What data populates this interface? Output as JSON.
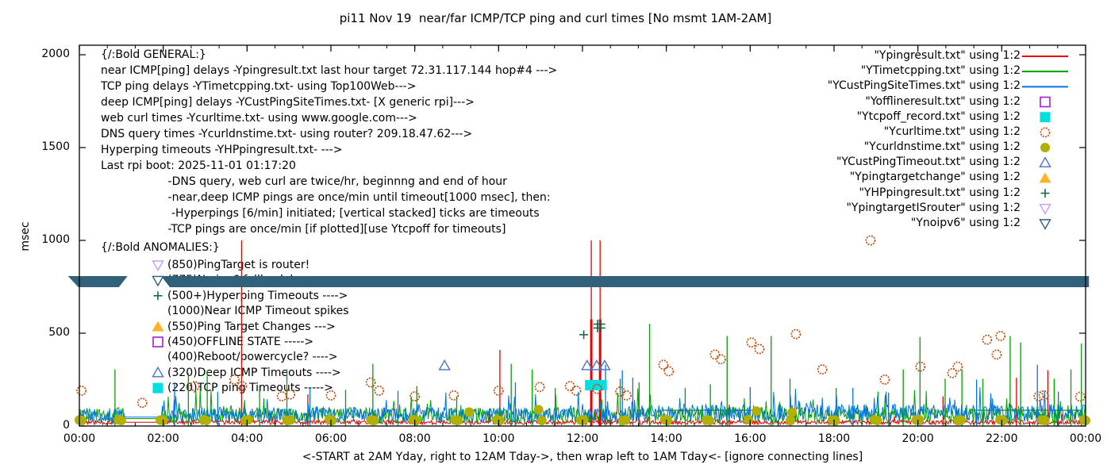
{
  "title": "pi11 Nov 19  near/far ICMP/TCP ping and curl times [No msmt 1AM-2AM]",
  "ylabel": "msec",
  "xlabel": "<-START at 2AM Yday, right to 12AM Tday->, then wrap left to 1AM Tday<- [ignore connecting lines]",
  "axes": {
    "y_tick_labels": [
      "0",
      "500",
      "1000",
      "1500",
      "2000"
    ],
    "x_tick_labels": [
      "00:00",
      "02:00",
      "04:00",
      "06:00",
      "08:00",
      "10:00",
      "12:00",
      "14:00",
      "16:00",
      "18:00",
      "20:00",
      "22:00",
      "00:00"
    ]
  },
  "general_block": {
    "lines": [
      "{/:Bold GENERAL:}",
      "near ICMP[ping] delays -Ypingresult.txt last hour target 72.31.117.144 hop#4 --->",
      "TCP ping delays -YTimetcpping.txt- using Top100Web--->",
      "deep ICMP[ping] delays -YCustPingSiteTimes.txt- [X generic rpi]--->",
      "web curl times -Ycurltime.txt- using www.google.com--->",
      "DNS query times -Ycurldnstime.txt- using router? 209.18.47.62--->",
      "Hyperping timeouts -YHPpingresult.txt- --->",
      "Last rpi boot: 2025-11-01 01:17:20",
      "                   -DNS query, web curl are twice/hr, beginnng and end of hour",
      "                   -near,deep ICMP pings are once/min until timeout[1000 msec], then:",
      "                    -Hyperpings [6/min] initiated; [vertical stacked] ticks are timeouts",
      "                   -TCP pings are once/min [if plotted][use Ytcpoff for timeouts]"
    ]
  },
  "anomalies_block": {
    "header": "{/:Bold ANOMALIES:}",
    "items": [
      {
        "marker": "tri-down-open",
        "color": "#c79cf2",
        "text": "(850)PingTarget is router!"
      },
      {
        "marker": "tri-down-open",
        "color": "#30607a",
        "text": "(775)No ipv6 fallback happens ---->"
      },
      {
        "marker": "plus",
        "color": "#156b52",
        "text": "(500+)Hyperping Timeouts ---->"
      },
      {
        "marker": "none",
        "color": "#000000",
        "text": "(1000)Near ICMP Timeout spikes"
      },
      {
        "marker": "tri-up-fill",
        "color": "#ffb428",
        "text": "(550)Ping Target Changes --->"
      },
      {
        "marker": "square-open",
        "color": "#a020d0",
        "text": "(450)OFFLINE STATE ----->"
      },
      {
        "marker": "none",
        "color": "#000000",
        "text": "(400)Reboot/powercycle? ---->"
      },
      {
        "marker": "tri-up-open",
        "color": "#4a72c8",
        "text": "(320)Deep ICMP Timeouts ---->"
      },
      {
        "marker": "square-fill",
        "color": "#00dede",
        "text": "(220)TCP ping Timeouts ----->"
      }
    ]
  },
  "legend": {
    "items": [
      {
        "label": "\"Ypingresult.txt\" using 1:2",
        "marker": "line",
        "color": "#e60000"
      },
      {
        "label": "\"YTimetcpping.txt\" using 1:2",
        "marker": "line",
        "color": "#00a000"
      },
      {
        "label": "\"YCustPingSiteTimes.txt\" using 1:2",
        "marker": "line",
        "color": "#0073e6"
      },
      {
        "label": "\"Yofflineresult.txt\" using 1:2",
        "marker": "square-open",
        "color": "#a020d0"
      },
      {
        "label": "\"Ytcpoff_record.txt\" using 1:2",
        "marker": "square-fill",
        "color": "#00dede"
      },
      {
        "label": "\"Ycurltime.txt\" using 1:2",
        "marker": "circle-open",
        "color": "#c05010"
      },
      {
        "label": "\"Ycurldnstime.txt\" using 1:2",
        "marker": "circle-fill",
        "color": "#b0b000"
      },
      {
        "label": "\"YCustPingTimeout.txt\" using 1:2",
        "marker": "tri-up-open",
        "color": "#4a72c8"
      },
      {
        "label": "\"Ypingtargetchange\" using 1:2",
        "marker": "tri-up-fill",
        "color": "#ffb428"
      },
      {
        "label": "\"YHPpingresult.txt\" using 1:2",
        "marker": "plus",
        "color": "#156b52"
      },
      {
        "label": "\"YpingtargetISrouter\" using 1:2",
        "marker": "tri-down-open",
        "color": "#c79cf2"
      },
      {
        "label": "\"Ynoipv6\" using 1:2",
        "marker": "tri-down-open",
        "color": "#30607a"
      }
    ]
  },
  "chart_data": {
    "type": "line",
    "title": "pi11 Nov 19  near/far ICMP/TCP ping and curl times [No msmt 1AM-2AM]",
    "xlabel": "<-START at 2AM Yday, right to 12AM Tday->, then wrap left to 1AM Tday<- [ignore connecting lines]",
    "ylabel": "msec",
    "ylim": [
      0,
      2000
    ],
    "x_hours": [
      0,
      24
    ],
    "x_tick_step_hours": 2,
    "grid": false,
    "legend_position": "top-right-inside",
    "no_measurement_window_hours": [
      1.08,
      1.98
    ],
    "series": [
      {
        "name": "Ypingresult.txt",
        "color": "#e60000",
        "style": "line",
        "noise": {
          "seed": 11,
          "base": 8,
          "amp": 24,
          "spike_p": 0.02,
          "spike_amp": 70,
          "gap_value": 20
        },
        "spikes": [
          [
            3.87,
            1000
          ],
          [
            5.45,
            170
          ],
          [
            10.03,
            410
          ],
          [
            12.21,
            1000
          ],
          [
            12.42,
            1000
          ],
          [
            15.5,
            115
          ],
          [
            20.6,
            160
          ],
          [
            22.35,
            260
          ],
          [
            23.1,
            300
          ]
        ],
        "thick_spikes": [
          [
            12.21,
            575
          ],
          [
            12.42,
            575
          ]
        ]
      },
      {
        "name": "YTimetcpping.txt",
        "color": "#00a000",
        "style": "line",
        "noise": {
          "seed": 22,
          "base": 15,
          "amp": 85,
          "spike_p": 0.06,
          "spike_amp": 115,
          "gap_value": 40
        },
        "spikes": [
          [
            0.85,
            305
          ],
          [
            2.6,
            285
          ],
          [
            3.05,
            300
          ],
          [
            4.3,
            215
          ],
          [
            4.95,
            305
          ],
          [
            6.35,
            195
          ],
          [
            7.0,
            335
          ],
          [
            8.05,
            215
          ],
          [
            9.0,
            160
          ],
          [
            10.3,
            335
          ],
          [
            10.8,
            305
          ],
          [
            11.35,
            205
          ],
          [
            12.9,
            255
          ],
          [
            13.35,
            235
          ],
          [
            13.6,
            550
          ],
          [
            14.45,
            205
          ],
          [
            15.05,
            225
          ],
          [
            15.45,
            485
          ],
          [
            16.5,
            485
          ],
          [
            16.95,
            255
          ],
          [
            18.05,
            205
          ],
          [
            19.05,
            185
          ],
          [
            19.65,
            305
          ],
          [
            20.05,
            480
          ],
          [
            20.65,
            255
          ],
          [
            21.05,
            305
          ],
          [
            21.55,
            255
          ],
          [
            22.2,
            485
          ],
          [
            22.45,
            450
          ],
          [
            23.25,
            255
          ],
          [
            23.65,
            305
          ],
          [
            23.9,
            445
          ]
        ],
        "flat_segments": [
          [
            13.9,
            16.2,
            85
          ],
          [
            21.3,
            23.9,
            85
          ]
        ]
      },
      {
        "name": "YCustPingSiteTimes.txt",
        "color": "#0073e6",
        "style": "line",
        "noise": {
          "seed": 33,
          "base": 20,
          "amp": 80,
          "spike_p": 0.05,
          "spike_amp": 100,
          "gap_value": 48,
          "boost_after": 12.5
        },
        "spikes": [
          [
            2.27,
            230
          ],
          [
            3.3,
            185
          ],
          [
            5.5,
            205
          ],
          [
            7.6,
            190
          ],
          [
            10.4,
            235
          ],
          [
            12.55,
            330
          ],
          [
            12.95,
            300
          ],
          [
            13.2,
            260
          ],
          [
            16.0,
            210
          ],
          [
            18.45,
            205
          ],
          [
            19.3,
            180
          ],
          [
            21.4,
            250
          ],
          [
            22.85,
            330
          ],
          [
            23.35,
            185
          ]
        ]
      },
      {
        "name": "Yofflineresult.txt",
        "color": "#a020d0",
        "style": "square-open",
        "points": []
      },
      {
        "name": "Ytcpoff_record.txt",
        "color": "#00dede",
        "style": "square-fill",
        "points": [],
        "box": {
          "t1": 12.06,
          "t2": 12.58,
          "v_low": 192,
          "v_high": 248
        }
      },
      {
        "name": "Ycurltime.txt",
        "color": "#c05010",
        "style": "circle-open",
        "points": [
          [
            0.05,
            190
          ],
          [
            1.5,
            125
          ],
          [
            2.75,
            215
          ],
          [
            3.7,
            250
          ],
          [
            3.88,
            215
          ],
          [
            4.83,
            160
          ],
          [
            5.03,
            170
          ],
          [
            6.0,
            165
          ],
          [
            6.95,
            235
          ],
          [
            7.15,
            190
          ],
          [
            8.0,
            160
          ],
          [
            8.93,
            165
          ],
          [
            10.0,
            190
          ],
          [
            10.98,
            210
          ],
          [
            11.7,
            215
          ],
          [
            11.85,
            190
          ],
          [
            12.35,
            200
          ],
          [
            12.9,
            185
          ],
          [
            13.05,
            165
          ],
          [
            13.93,
            330
          ],
          [
            14.06,
            295
          ],
          [
            15.16,
            385
          ],
          [
            15.3,
            360
          ],
          [
            16.03,
            450
          ],
          [
            16.22,
            415
          ],
          [
            17.09,
            495
          ],
          [
            17.72,
            305
          ],
          [
            18.87,
            1000
          ],
          [
            19.21,
            250
          ],
          [
            20.06,
            320
          ],
          [
            20.82,
            285
          ],
          [
            20.95,
            320
          ],
          [
            21.65,
            465
          ],
          [
            21.88,
            385
          ],
          [
            21.97,
            485
          ],
          [
            22.88,
            160
          ],
          [
            23.0,
            165
          ],
          [
            23.87,
            158
          ]
        ]
      },
      {
        "name": "Ycurldnstime.txt",
        "color": "#b0b000",
        "style": "circle-fill",
        "points": [
          [
            0.0,
            32
          ],
          [
            0.06,
            30
          ],
          [
            0.93,
            34
          ],
          [
            1.0,
            30
          ],
          [
            1.93,
            32
          ],
          [
            2.0,
            30
          ],
          [
            2.96,
            34
          ],
          [
            3.03,
            30
          ],
          [
            3.96,
            30
          ],
          [
            4.03,
            34
          ],
          [
            4.96,
            30
          ],
          [
            5.03,
            32
          ],
          [
            5.96,
            34
          ],
          [
            6.03,
            30
          ],
          [
            6.96,
            32
          ],
          [
            7.03,
            30
          ],
          [
            7.96,
            34
          ],
          [
            8.03,
            30
          ],
          [
            8.96,
            32
          ],
          [
            9.03,
            30
          ],
          [
            9.3,
            75
          ],
          [
            9.96,
            34
          ],
          [
            10.03,
            30
          ],
          [
            10.95,
            88
          ],
          [
            11.03,
            30
          ],
          [
            11.96,
            32
          ],
          [
            12.03,
            34
          ],
          [
            12.96,
            30
          ],
          [
            13.03,
            32
          ],
          [
            13.96,
            34
          ],
          [
            14.03,
            30
          ],
          [
            14.96,
            32
          ],
          [
            15.03,
            30
          ],
          [
            15.96,
            34
          ],
          [
            16.15,
            80
          ],
          [
            16.96,
            30
          ],
          [
            17.0,
            73
          ],
          [
            17.96,
            32
          ],
          [
            18.03,
            30
          ],
          [
            18.96,
            34
          ],
          [
            19.03,
            30
          ],
          [
            19.96,
            32
          ],
          [
            20.03,
            34
          ],
          [
            20.96,
            30
          ],
          [
            21.03,
            32
          ],
          [
            21.96,
            34
          ],
          [
            22.03,
            30
          ],
          [
            22.96,
            32
          ],
          [
            23.03,
            30
          ],
          [
            23.96,
            34
          ],
          [
            24.0,
            30
          ]
        ]
      },
      {
        "name": "YCustPingTimeout.txt",
        "color": "#4a72c8",
        "style": "tri-up-open",
        "points": [
          [
            8.71,
            325
          ],
          [
            12.11,
            325
          ],
          [
            12.34,
            325
          ],
          [
            12.53,
            325
          ]
        ]
      },
      {
        "name": "Ypingtargetchange",
        "color": "#ffb428",
        "style": "tri-up-fill",
        "points": []
      },
      {
        "name": "YHPpingresult.txt",
        "color": "#156b52",
        "style": "plus",
        "points": [
          [
            12.03,
            492
          ],
          [
            12.36,
            528
          ],
          [
            12.44,
            528
          ],
          [
            12.36,
            549
          ],
          [
            12.44,
            549
          ]
        ]
      },
      {
        "name": "YpingtargetISrouter",
        "color": "#c79cf2",
        "style": "tri-down-open",
        "points": []
      },
      {
        "name": "Ynoipv6",
        "color": "#30607a",
        "style": "tri-down-open",
        "band": {
          "value": 778,
          "segments_hours": [
            [
              -0.27,
              1.15
            ],
            [
              1.95,
              24.08
            ]
          ]
        }
      }
    ]
  }
}
